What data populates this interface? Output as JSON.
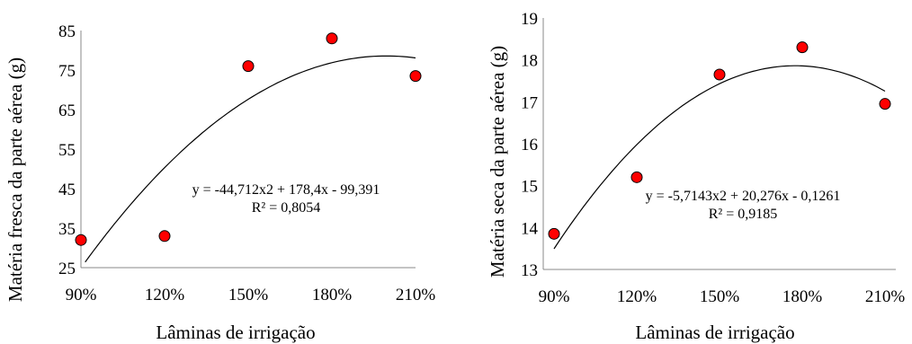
{
  "chart_data": [
    {
      "type": "scatter",
      "xlabel": "Lâminas de irrigação",
      "ylabel": "Matéria fresca da parte aérea (g)",
      "categories": [
        "90%",
        "120%",
        "150%",
        "180%",
        "210%"
      ],
      "x": [
        0.9,
        1.2,
        1.5,
        1.8,
        2.1
      ],
      "values": [
        32,
        33,
        76,
        83,
        73.5
      ],
      "ylim": [
        25,
        85
      ],
      "yticks": [
        "25",
        "35",
        "45",
        "55",
        "65",
        "75",
        "85"
      ],
      "trendline": {
        "type": "polynomial",
        "a": -44.712,
        "b": 178.4,
        "c": -99.391
      },
      "equation": "y = -44,712x2 + 178,4x - 99,391",
      "r2": "R² = 0,8054",
      "marker_color": "#ff0000",
      "grid": false
    },
    {
      "type": "scatter",
      "xlabel": "Lâminas de irrigação",
      "ylabel": "Matéria seca da parte aérea (g)",
      "categories": [
        "90%",
        "120%",
        "150%",
        "180%",
        "210%"
      ],
      "x": [
        0.9,
        1.2,
        1.5,
        1.8,
        2.1
      ],
      "values": [
        13.85,
        15.2,
        17.65,
        18.3,
        16.95
      ],
      "ylim": [
        13,
        19
      ],
      "yticks": [
        "13",
        "14",
        "15",
        "16",
        "17",
        "18",
        "19"
      ],
      "trendline": {
        "type": "polynomial",
        "a": -5.7143,
        "b": 20.276,
        "c": -0.1261
      },
      "equation": "y = -5,7143x2 + 20,276x - 0,1261",
      "r2": "R² = 0,9185",
      "marker_color": "#ff0000",
      "grid": false
    }
  ]
}
